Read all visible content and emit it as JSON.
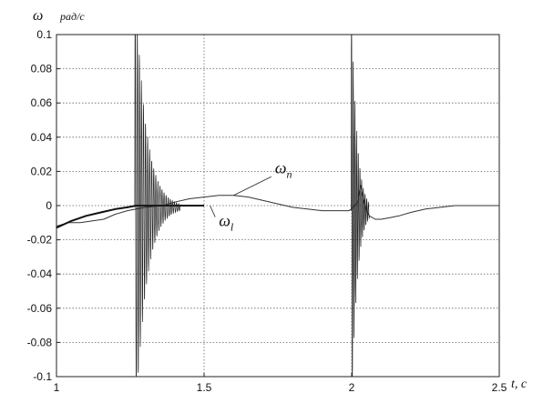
{
  "chart_data": {
    "type": "line",
    "title": "",
    "ylabel": "ω",
    "yunit": "рад/с",
    "xlabel": "t, с",
    "xlim": [
      1,
      2.5
    ],
    "ylim": [
      -0.1,
      0.1
    ],
    "grid": "dotted",
    "x_ticks": [
      1,
      1.5,
      2,
      2.5
    ],
    "x_tick_labels": [
      "1",
      "1.5",
      "2",
      "2.5"
    ],
    "y_ticks": [
      0.1,
      0.08,
      0.06,
      0.04,
      0.02,
      0,
      -0.02,
      -0.04,
      -0.06,
      -0.08,
      -0.1
    ],
    "y_tick_labels": [
      "0.1",
      "0.08",
      "0.06",
      "0.04",
      "0.02",
      "0",
      "-0.02",
      "-0.04",
      "-0.06",
      "-0.08",
      "-0.1"
    ],
    "series": [
      {
        "name": "ω_l",
        "description": "smooth response with oscillations near t≈1.27 and t≈2.0",
        "points": [
          [
            1.0,
            -0.013
          ],
          [
            1.05,
            -0.009
          ],
          [
            1.1,
            -0.006
          ],
          [
            1.15,
            -0.004
          ],
          [
            1.2,
            -0.002
          ],
          [
            1.24,
            -0.001
          ],
          [
            1.27,
            0.0
          ],
          [
            1.3,
            0.0
          ],
          [
            1.34,
            0.0
          ],
          [
            1.38,
            0.0
          ],
          [
            1.42,
            0.0
          ],
          [
            1.5,
            0.0
          ]
        ]
      },
      {
        "name": "ω_n",
        "points": [
          [
            1.0,
            -0.012
          ],
          [
            1.04,
            -0.01
          ],
          [
            1.08,
            -0.01
          ],
          [
            1.12,
            -0.009
          ],
          [
            1.16,
            -0.008
          ],
          [
            1.2,
            -0.005
          ],
          [
            1.24,
            -0.003
          ],
          [
            1.3,
            -0.001
          ],
          [
            1.36,
            0.0
          ],
          [
            1.4,
            0.002
          ],
          [
            1.45,
            0.004
          ],
          [
            1.5,
            0.005
          ],
          [
            1.55,
            0.006
          ],
          [
            1.6,
            0.006
          ],
          [
            1.65,
            0.005
          ],
          [
            1.7,
            0.003
          ],
          [
            1.75,
            0.001
          ],
          [
            1.8,
            -0.001
          ],
          [
            1.85,
            -0.002
          ],
          [
            1.9,
            -0.003
          ],
          [
            1.95,
            -0.003
          ],
          [
            1.99,
            -0.003
          ],
          [
            2.0,
            -0.002
          ],
          [
            2.02,
            0.002
          ],
          [
            2.03,
            0.012
          ],
          [
            2.04,
            0.004
          ],
          [
            2.05,
            -0.003
          ],
          [
            2.06,
            -0.006
          ],
          [
            2.08,
            -0.008
          ],
          [
            2.1,
            -0.008
          ],
          [
            2.13,
            -0.007
          ],
          [
            2.16,
            -0.006
          ],
          [
            2.2,
            -0.004
          ],
          [
            2.25,
            -0.002
          ],
          [
            2.3,
            -0.001
          ],
          [
            2.35,
            0.0
          ],
          [
            2.4,
            0.0
          ],
          [
            2.45,
            0.0
          ],
          [
            2.5,
            0.0
          ]
        ]
      }
    ],
    "annotations": [
      {
        "text": "ω_n",
        "at": [
          1.74,
          0.019
        ],
        "arrow_to": [
          1.6,
          0.006
        ]
      },
      {
        "text": "ω_l",
        "at": [
          1.55,
          -0.012
        ],
        "arrow_to": [
          1.52,
          0.0
        ]
      }
    ]
  }
}
